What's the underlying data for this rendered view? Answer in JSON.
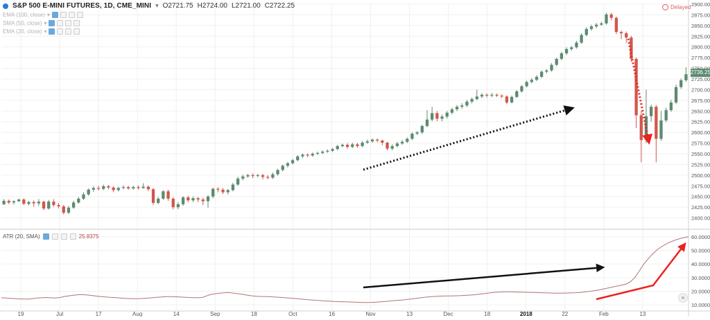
{
  "header": {
    "symbol": "S&P 500 E-MINI FUTURES, 1D, CME_MINI",
    "open": "O2721.75",
    "high": "H2724.00",
    "low": "L2721.00",
    "close": "C2722.25",
    "indicators": [
      "EMA (100, close)",
      "SMA (50, close)",
      "EMA (20, close)"
    ],
    "delayed_label": "Delayed",
    "last_price": "2736.25"
  },
  "atr_header": {
    "label": "ATR (20, SMA)",
    "value": "25.8375"
  },
  "colors": {
    "up": "#5c8b70",
    "down": "#d2574b",
    "atr_line": "#b07474",
    "grid": "#f0f0f0",
    "black_arrow": "#111111",
    "red_arrow": "#ee2020"
  },
  "chart_data": [
    {
      "type": "candlestick",
      "title": "S&P 500 E-MINI FUTURES, 1D, CME_MINI",
      "ylim": [
        2375,
        2900
      ],
      "yticks": [
        "2900.00",
        "2875.00",
        "2850.00",
        "2825.00",
        "2800.00",
        "2775.00",
        "2750.00",
        "2725.00",
        "2700.00",
        "2675.00",
        "2650.00",
        "2625.00",
        "2600.00",
        "2575.00",
        "2550.00",
        "2525.00",
        "2500.00",
        "2475.00",
        "2450.00",
        "2425.00",
        "2400.00"
      ],
      "xticks": [
        "19",
        "Jul",
        "17",
        "Aug",
        "14",
        "Sep",
        "18",
        "Oct",
        "16",
        "Nov",
        "13",
        "Dec",
        "18",
        "2018",
        "22",
        "Feb",
        "13"
      ],
      "grid": true,
      "annotations": [
        "black dotted arrow: rising trend",
        "red dotted arrow: sharp decline"
      ],
      "candles": [
        {
          "o": 2432,
          "c": 2440,
          "h": 2444,
          "l": 2430
        },
        {
          "o": 2440,
          "c": 2436,
          "h": 2443,
          "l": 2432
        },
        {
          "o": 2436,
          "c": 2439,
          "h": 2441,
          "l": 2431
        },
        {
          "o": 2439,
          "c": 2443,
          "h": 2445,
          "l": 2437
        },
        {
          "o": 2443,
          "c": 2433,
          "h": 2446,
          "l": 2430
        },
        {
          "o": 2433,
          "c": 2437,
          "h": 2440,
          "l": 2429
        },
        {
          "o": 2437,
          "c": 2434,
          "h": 2441,
          "l": 2426
        },
        {
          "o": 2434,
          "c": 2438,
          "h": 2444,
          "l": 2428
        },
        {
          "o": 2438,
          "c": 2422,
          "h": 2440,
          "l": 2418
        },
        {
          "o": 2422,
          "c": 2438,
          "h": 2442,
          "l": 2419
        },
        {
          "o": 2438,
          "c": 2430,
          "h": 2444,
          "l": 2426
        },
        {
          "o": 2430,
          "c": 2427,
          "h": 2435,
          "l": 2422
        },
        {
          "o": 2427,
          "c": 2412,
          "h": 2430,
          "l": 2408
        },
        {
          "o": 2412,
          "c": 2424,
          "h": 2428,
          "l": 2409
        },
        {
          "o": 2424,
          "c": 2436,
          "h": 2440,
          "l": 2421
        },
        {
          "o": 2436,
          "c": 2445,
          "h": 2449,
          "l": 2433
        },
        {
          "o": 2445,
          "c": 2455,
          "h": 2460,
          "l": 2442
        },
        {
          "o": 2455,
          "c": 2466,
          "h": 2469,
          "l": 2452
        },
        {
          "o": 2466,
          "c": 2470,
          "h": 2474,
          "l": 2461
        },
        {
          "o": 2470,
          "c": 2468,
          "h": 2475,
          "l": 2464
        },
        {
          "o": 2468,
          "c": 2474,
          "h": 2478,
          "l": 2465
        },
        {
          "o": 2474,
          "c": 2471,
          "h": 2477,
          "l": 2467
        },
        {
          "o": 2471,
          "c": 2465,
          "h": 2474,
          "l": 2460
        },
        {
          "o": 2465,
          "c": 2470,
          "h": 2473,
          "l": 2462
        },
        {
          "o": 2470,
          "c": 2472,
          "h": 2476,
          "l": 2467
        },
        {
          "o": 2472,
          "c": 2469,
          "h": 2475,
          "l": 2466
        },
        {
          "o": 2469,
          "c": 2472,
          "h": 2475,
          "l": 2466
        },
        {
          "o": 2472,
          "c": 2470,
          "h": 2476,
          "l": 2466
        },
        {
          "o": 2470,
          "c": 2473,
          "h": 2481,
          "l": 2468
        },
        {
          "o": 2473,
          "c": 2467,
          "h": 2476,
          "l": 2463
        },
        {
          "o": 2467,
          "c": 2435,
          "h": 2470,
          "l": 2430
        },
        {
          "o": 2435,
          "c": 2445,
          "h": 2449,
          "l": 2432
        },
        {
          "o": 2445,
          "c": 2462,
          "h": 2465,
          "l": 2442
        },
        {
          "o": 2462,
          "c": 2445,
          "h": 2466,
          "l": 2440
        },
        {
          "o": 2445,
          "c": 2425,
          "h": 2448,
          "l": 2420
        },
        {
          "o": 2425,
          "c": 2432,
          "h": 2437,
          "l": 2420
        },
        {
          "o": 2432,
          "c": 2448,
          "h": 2451,
          "l": 2428
        },
        {
          "o": 2448,
          "c": 2441,
          "h": 2452,
          "l": 2437
        },
        {
          "o": 2441,
          "c": 2446,
          "h": 2450,
          "l": 2437
        },
        {
          "o": 2446,
          "c": 2443,
          "h": 2449,
          "l": 2437
        },
        {
          "o": 2443,
          "c": 2439,
          "h": 2447,
          "l": 2430
        },
        {
          "o": 2439,
          "c": 2450,
          "h": 2453,
          "l": 2424
        },
        {
          "o": 2450,
          "c": 2468,
          "h": 2471,
          "l": 2446
        },
        {
          "o": 2468,
          "c": 2466,
          "h": 2472,
          "l": 2460
        },
        {
          "o": 2466,
          "c": 2460,
          "h": 2470,
          "l": 2456
        },
        {
          "o": 2460,
          "c": 2465,
          "h": 2468,
          "l": 2455
        },
        {
          "o": 2465,
          "c": 2478,
          "h": 2482,
          "l": 2462
        },
        {
          "o": 2478,
          "c": 2492,
          "h": 2496,
          "l": 2475
        },
        {
          "o": 2492,
          "c": 2497,
          "h": 2501,
          "l": 2488
        },
        {
          "o": 2497,
          "c": 2500,
          "h": 2503,
          "l": 2494
        },
        {
          "o": 2500,
          "c": 2498,
          "h": 2504,
          "l": 2493
        },
        {
          "o": 2498,
          "c": 2500,
          "h": 2503,
          "l": 2495
        },
        {
          "o": 2500,
          "c": 2496,
          "h": 2503,
          "l": 2490
        },
        {
          "o": 2496,
          "c": 2494,
          "h": 2500,
          "l": 2490
        },
        {
          "o": 2494,
          "c": 2502,
          "h": 2506,
          "l": 2491
        },
        {
          "o": 2502,
          "c": 2512,
          "h": 2515,
          "l": 2499
        },
        {
          "o": 2512,
          "c": 2522,
          "h": 2525,
          "l": 2509
        },
        {
          "o": 2522,
          "c": 2528,
          "h": 2531,
          "l": 2518
        },
        {
          "o": 2528,
          "c": 2535,
          "h": 2538,
          "l": 2525
        },
        {
          "o": 2535,
          "c": 2544,
          "h": 2547,
          "l": 2532
        },
        {
          "o": 2544,
          "c": 2548,
          "h": 2551,
          "l": 2540
        },
        {
          "o": 2548,
          "c": 2546,
          "h": 2551,
          "l": 2542
        },
        {
          "o": 2546,
          "c": 2550,
          "h": 2553,
          "l": 2543
        },
        {
          "o": 2550,
          "c": 2552,
          "h": 2555,
          "l": 2547
        },
        {
          "o": 2552,
          "c": 2555,
          "h": 2558,
          "l": 2549
        },
        {
          "o": 2555,
          "c": 2557,
          "h": 2560,
          "l": 2552
        },
        {
          "o": 2557,
          "c": 2561,
          "h": 2564,
          "l": 2554
        },
        {
          "o": 2561,
          "c": 2568,
          "h": 2571,
          "l": 2558
        },
        {
          "o": 2568,
          "c": 2571,
          "h": 2574,
          "l": 2565
        },
        {
          "o": 2571,
          "c": 2566,
          "h": 2575,
          "l": 2562
        },
        {
          "o": 2566,
          "c": 2572,
          "h": 2576,
          "l": 2563
        },
        {
          "o": 2572,
          "c": 2568,
          "h": 2576,
          "l": 2564
        },
        {
          "o": 2568,
          "c": 2576,
          "h": 2580,
          "l": 2565
        },
        {
          "o": 2576,
          "c": 2579,
          "h": 2583,
          "l": 2573
        },
        {
          "o": 2579,
          "c": 2583,
          "h": 2586,
          "l": 2576
        },
        {
          "o": 2583,
          "c": 2581,
          "h": 2586,
          "l": 2577
        },
        {
          "o": 2581,
          "c": 2576,
          "h": 2583,
          "l": 2570
        },
        {
          "o": 2576,
          "c": 2562,
          "h": 2578,
          "l": 2558
        },
        {
          "o": 2562,
          "c": 2568,
          "h": 2572,
          "l": 2558
        },
        {
          "o": 2568,
          "c": 2574,
          "h": 2578,
          "l": 2565
        },
        {
          "o": 2574,
          "c": 2578,
          "h": 2582,
          "l": 2571
        },
        {
          "o": 2578,
          "c": 2585,
          "h": 2588,
          "l": 2575
        },
        {
          "o": 2585,
          "c": 2597,
          "h": 2600,
          "l": 2582
        },
        {
          "o": 2597,
          "c": 2600,
          "h": 2603,
          "l": 2594
        },
        {
          "o": 2600,
          "c": 2615,
          "h": 2618,
          "l": 2596
        },
        {
          "o": 2615,
          "c": 2630,
          "h": 2652,
          "l": 2612
        },
        {
          "o": 2630,
          "c": 2645,
          "h": 2660,
          "l": 2626
        },
        {
          "o": 2645,
          "c": 2632,
          "h": 2650,
          "l": 2626
        },
        {
          "o": 2632,
          "c": 2637,
          "h": 2642,
          "l": 2626
        },
        {
          "o": 2637,
          "c": 2646,
          "h": 2650,
          "l": 2632
        },
        {
          "o": 2646,
          "c": 2654,
          "h": 2658,
          "l": 2642
        },
        {
          "o": 2654,
          "c": 2660,
          "h": 2664,
          "l": 2650
        },
        {
          "o": 2660,
          "c": 2663,
          "h": 2668,
          "l": 2655
        },
        {
          "o": 2663,
          "c": 2672,
          "h": 2676,
          "l": 2659
        },
        {
          "o": 2672,
          "c": 2678,
          "h": 2682,
          "l": 2668
        },
        {
          "o": 2678,
          "c": 2684,
          "h": 2700,
          "l": 2675
        },
        {
          "o": 2684,
          "c": 2688,
          "h": 2692,
          "l": 2680
        },
        {
          "o": 2688,
          "c": 2686,
          "h": 2691,
          "l": 2682
        },
        {
          "o": 2686,
          "c": 2688,
          "h": 2692,
          "l": 2682
        },
        {
          "o": 2688,
          "c": 2686,
          "h": 2691,
          "l": 2683
        },
        {
          "o": 2686,
          "c": 2684,
          "h": 2689,
          "l": 2680
        },
        {
          "o": 2684,
          "c": 2670,
          "h": 2687,
          "l": 2666
        },
        {
          "o": 2670,
          "c": 2683,
          "h": 2686,
          "l": 2668
        },
        {
          "o": 2683,
          "c": 2696,
          "h": 2699,
          "l": 2680
        },
        {
          "o": 2696,
          "c": 2708,
          "h": 2711,
          "l": 2693
        },
        {
          "o": 2708,
          "c": 2718,
          "h": 2721,
          "l": 2705
        },
        {
          "o": 2718,
          "c": 2723,
          "h": 2727,
          "l": 2715
        },
        {
          "o": 2723,
          "c": 2730,
          "h": 2734,
          "l": 2720
        },
        {
          "o": 2730,
          "c": 2742,
          "h": 2745,
          "l": 2727
        },
        {
          "o": 2742,
          "c": 2745,
          "h": 2748,
          "l": 2738
        },
        {
          "o": 2745,
          "c": 2758,
          "h": 2762,
          "l": 2742
        },
        {
          "o": 2758,
          "c": 2772,
          "h": 2775,
          "l": 2755
        },
        {
          "o": 2772,
          "c": 2785,
          "h": 2789,
          "l": 2769
        },
        {
          "o": 2785,
          "c": 2795,
          "h": 2799,
          "l": 2781
        },
        {
          "o": 2795,
          "c": 2799,
          "h": 2802,
          "l": 2791
        },
        {
          "o": 2799,
          "c": 2810,
          "h": 2814,
          "l": 2796
        },
        {
          "o": 2810,
          "c": 2828,
          "h": 2832,
          "l": 2807
        },
        {
          "o": 2828,
          "c": 2842,
          "h": 2846,
          "l": 2825
        },
        {
          "o": 2842,
          "c": 2848,
          "h": 2852,
          "l": 2838
        },
        {
          "o": 2848,
          "c": 2852,
          "h": 2856,
          "l": 2844
        },
        {
          "o": 2852,
          "c": 2855,
          "h": 2859,
          "l": 2849
        },
        {
          "o": 2855,
          "c": 2876,
          "h": 2880,
          "l": 2852
        },
        {
          "o": 2876,
          "c": 2868,
          "h": 2880,
          "l": 2862
        },
        {
          "o": 2868,
          "c": 2835,
          "h": 2871,
          "l": 2830
        },
        {
          "o": 2835,
          "c": 2832,
          "h": 2838,
          "l": 2818
        },
        {
          "o": 2832,
          "c": 2822,
          "h": 2836,
          "l": 2810
        },
        {
          "o": 2822,
          "c": 2772,
          "h": 2826,
          "l": 2765
        },
        {
          "o": 2772,
          "c": 2640,
          "h": 2775,
          "l": 2610
        },
        {
          "o": 2640,
          "c": 2582,
          "h": 2650,
          "l": 2530
        },
        {
          "o": 2582,
          "c": 2638,
          "h": 2700,
          "l": 2575
        },
        {
          "o": 2638,
          "c": 2660,
          "h": 2665,
          "l": 2625
        },
        {
          "o": 2660,
          "c": 2585,
          "h": 2664,
          "l": 2530
        },
        {
          "o": 2585,
          "c": 2628,
          "h": 2650,
          "l": 2580
        },
        {
          "o": 2628,
          "c": 2652,
          "h": 2658,
          "l": 2624
        },
        {
          "o": 2652,
          "c": 2670,
          "h": 2676,
          "l": 2648
        },
        {
          "o": 2670,
          "c": 2706,
          "h": 2712,
          "l": 2666
        },
        {
          "o": 2706,
          "c": 2722,
          "h": 2726,
          "l": 2702
        },
        {
          "o": 2722,
          "c": 2736,
          "h": 2752,
          "l": 2718
        }
      ]
    },
    {
      "type": "line",
      "title": "ATR (20, SMA)",
      "ylim": [
        6,
        64
      ],
      "yticks": [
        "60.0000",
        "50.0000",
        "40.0000",
        "30.0000",
        "20.0000",
        "10.0000"
      ],
      "series": [
        {
          "name": "ATR (20, SMA)",
          "values": [
            15.2,
            15.0,
            14.8,
            14.6,
            14.4,
            14.3,
            14.2,
            14.6,
            15.0,
            15.2,
            15.4,
            15.2,
            15.0,
            15.3,
            16.0,
            16.6,
            17.0,
            17.4,
            17.6,
            17.3,
            17.0,
            16.6,
            16.2,
            15.9,
            15.6,
            15.4,
            15.2,
            14.9,
            14.7,
            14.6,
            14.5,
            14.6,
            14.8,
            15.0,
            15.3,
            15.6,
            15.8,
            16.0,
            16.0,
            15.9,
            15.8,
            15.6,
            15.4,
            15.3,
            15.2,
            15.4,
            16.6,
            17.7,
            18.2,
            18.6,
            18.9,
            19.0,
            18.6,
            18.2,
            17.7,
            17.2,
            16.7,
            16.4,
            16.2,
            16.1,
            16.0,
            15.8,
            15.6,
            15.4,
            15.1,
            14.9,
            14.6,
            14.3,
            14.0,
            13.7,
            13.5,
            13.3,
            13.0,
            12.8,
            12.6,
            12.4,
            12.3,
            12.2,
            12.1,
            12.0,
            11.9,
            11.7,
            11.7,
            11.8,
            12.0,
            12.2,
            12.5,
            12.8,
            13.1,
            13.4,
            13.6,
            14.0,
            14.4,
            14.8,
            15.2,
            15.6,
            15.9,
            16.2,
            16.4,
            16.5,
            16.6,
            16.6,
            16.7,
            16.8,
            17.0,
            17.2,
            17.4,
            17.8,
            18.2,
            18.6,
            19.0,
            19.3,
            19.5,
            19.6,
            19.6,
            19.5,
            19.4,
            19.3,
            19.2,
            19.1,
            19.0,
            18.9,
            18.8,
            18.7,
            18.6,
            18.6,
            18.6,
            18.7,
            18.8,
            18.9,
            19.2,
            19.6,
            20.0,
            20.5,
            21.0,
            21.7,
            22.4,
            23.1,
            23.8,
            24.5,
            25.2,
            27.0,
            30.2,
            35.0,
            40.0,
            44.0,
            47.5,
            50.5,
            52.8,
            54.7,
            56.3,
            57.6,
            58.6,
            59.4,
            60.0
          ]
        }
      ],
      "annotations": [
        "black arrow: gradual rise",
        "red arrow: sharp rise"
      ]
    }
  ]
}
